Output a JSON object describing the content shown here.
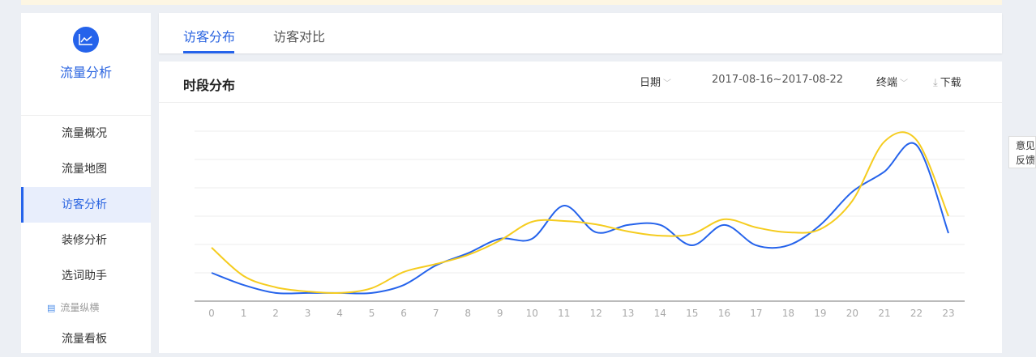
{
  "sidebar": {
    "title": "流量分析",
    "items": [
      {
        "label": "流量概况"
      },
      {
        "label": "流量地图"
      },
      {
        "label": "访客分析"
      },
      {
        "label": "装修分析"
      },
      {
        "label": "选词助手"
      }
    ],
    "group": "流量纵横",
    "items2": [
      {
        "label": "流量看板"
      }
    ]
  },
  "tabs": [
    {
      "label": "访客分布"
    },
    {
      "label": "访客对比"
    }
  ],
  "panel": {
    "title": "时段分布",
    "date_label": "日期",
    "date_range": "2017-08-16~2017-08-22",
    "terminal_label": "终端",
    "download_label": "下载"
  },
  "feedback": {
    "line1": "意见",
    "line2": "反馈"
  },
  "colors": {
    "accent": "#2563eb",
    "series1": "#2563eb",
    "series2": "#f5cc1f"
  },
  "chart_data": {
    "type": "line",
    "categories": [
      "0",
      "1",
      "2",
      "3",
      "4",
      "5",
      "6",
      "7",
      "8",
      "9",
      "10",
      "11",
      "12",
      "13",
      "14",
      "15",
      "16",
      "17",
      "18",
      "19",
      "20",
      "21",
      "22",
      "23"
    ],
    "ylim": [
      0,
      6
    ],
    "grid": true,
    "smooth": true,
    "series": [
      {
        "color": "#2563eb",
        "values": [
          1.0,
          0.57,
          0.29,
          0.29,
          0.29,
          0.29,
          0.57,
          1.26,
          1.69,
          2.2,
          2.2,
          3.37,
          2.43,
          2.69,
          2.69,
          1.97,
          2.69,
          1.97,
          1.97,
          2.69,
          3.86,
          4.57,
          5.51,
          2.4
        ]
      },
      {
        "color": "#f5cc1f",
        "values": [
          1.89,
          0.89,
          0.49,
          0.34,
          0.29,
          0.46,
          1.03,
          1.31,
          1.63,
          2.14,
          2.8,
          2.83,
          2.71,
          2.46,
          2.31,
          2.37,
          2.89,
          2.6,
          2.43,
          2.54,
          3.54,
          5.63,
          5.69,
          3.0
        ]
      }
    ]
  }
}
